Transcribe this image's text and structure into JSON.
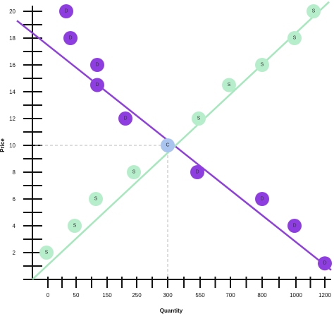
{
  "chart_data": {
    "type": "scatter",
    "title": "",
    "xlabel": "Quantity",
    "ylabel": "Price",
    "x_tick_labels": [
      "0",
      "50",
      "150",
      "250",
      "300",
      "550",
      "700",
      "800",
      "1000",
      "1200"
    ],
    "y_tick_labels": [
      "2",
      "4",
      "6",
      "8",
      "10",
      "12",
      "14",
      "16",
      "18",
      "20"
    ],
    "ylim": [
      0,
      20
    ],
    "series": [
      {
        "marker_label": "D",
        "color": "#8e3ee0",
        "points": [
          {
            "x": "50",
            "y": 20.0
          },
          {
            "x": "50",
            "y": 18.0
          },
          {
            "x": "150",
            "y": 16.0
          },
          {
            "x": "150",
            "y": 14.5
          },
          {
            "x": "250",
            "y": 12.0
          },
          {
            "x": "550",
            "y": 8.0
          },
          {
            "x": "800",
            "y": 6.0
          },
          {
            "x": "1000",
            "y": 4.0
          },
          {
            "x": "1200",
            "y": 1.2
          }
        ]
      },
      {
        "marker_label": "S",
        "color": "#b6eecb",
        "points": [
          {
            "x": "0",
            "y": 2.0
          },
          {
            "x": "50",
            "y": 4.0
          },
          {
            "x": "150",
            "y": 6.0
          },
          {
            "x": "250",
            "y": 8.0
          },
          {
            "x": "550",
            "y": 12.0
          },
          {
            "x": "700",
            "y": 14.5
          },
          {
            "x": "800",
            "y": 16.0
          },
          {
            "x": "1000",
            "y": 18.0
          },
          {
            "x": "1200",
            "y": 20.0
          }
        ]
      },
      {
        "marker_label": "C",
        "color": "#a9c4ee",
        "points": [
          {
            "x": "300",
            "y": 10.0
          }
        ]
      }
    ],
    "lines": [
      {
        "color": "#8e3ee0",
        "from": {
          "x": "",
          "y": 19.3
        },
        "to": {
          "x": "1200",
          "y": 0.7
        }
      },
      {
        "color": "#a4e8bc",
        "from": {
          "x": "",
          "y": 0.0
        },
        "to": {
          "x": "1200",
          "y": 20.7
        }
      }
    ],
    "reference_point": {
      "x": "300",
      "y": 10.0
    },
    "grid": false
  }
}
